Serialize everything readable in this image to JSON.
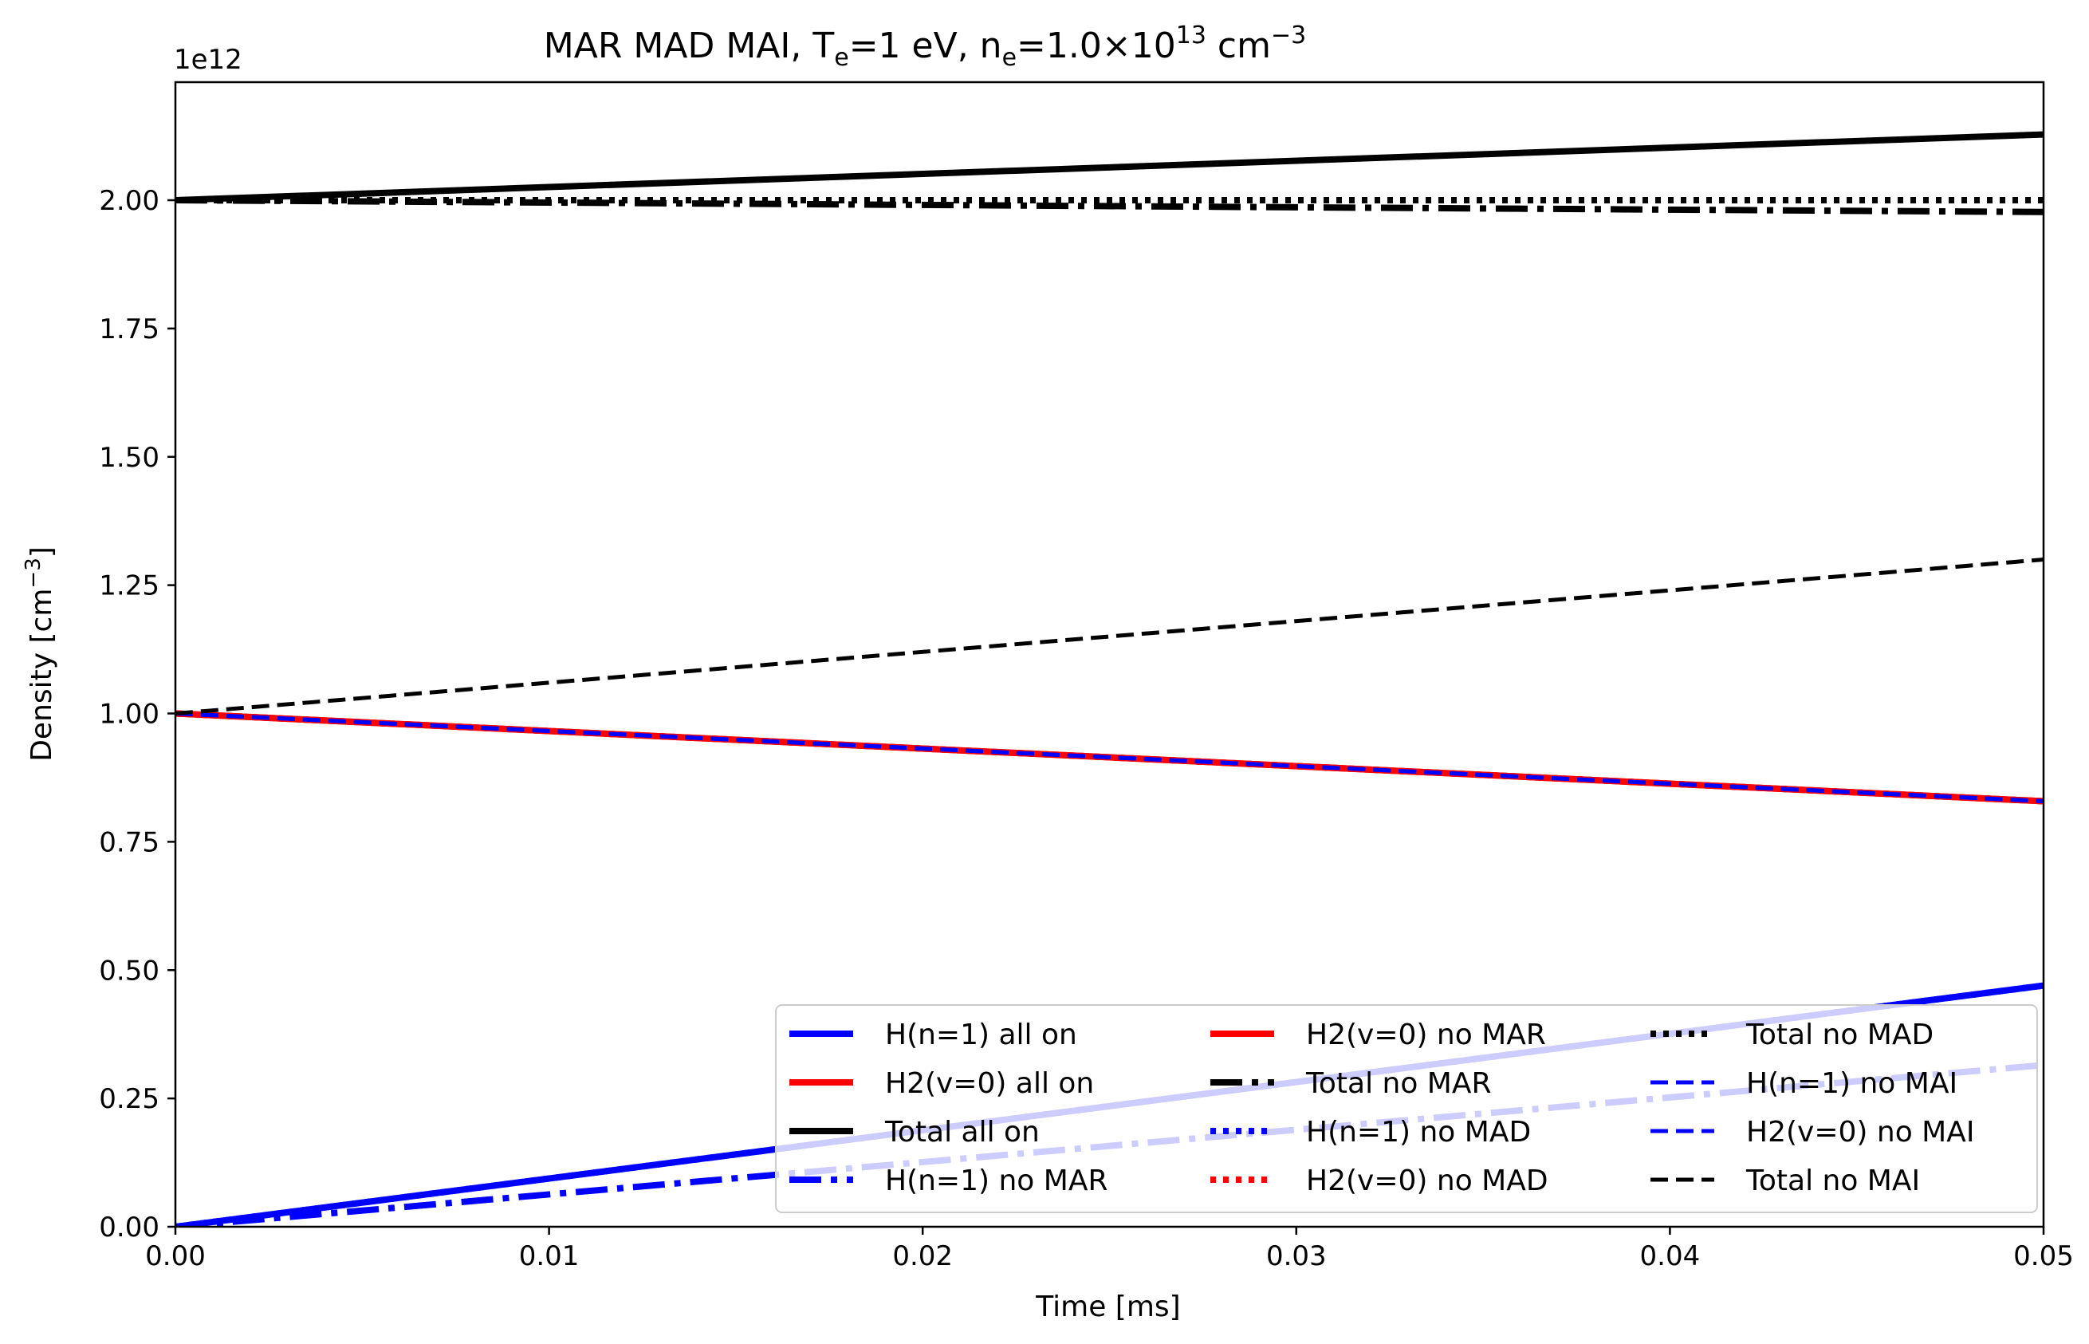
{
  "chart_data": {
    "type": "line",
    "title": {
      "main": "MAR MAD MAI,  T",
      "te_sub": "e",
      "te_value": "=1 eV, n",
      "ne_sub": "e",
      "ne_value": "=1.0×10",
      "ne_exp": "13",
      "unit": " cm",
      "unit_exp": "−3"
    },
    "xlabel": "Time [ms]",
    "ylabel": {
      "text": "Density [cm",
      "exp": "−3",
      "close": "]"
    },
    "y_offset_label": "1e12",
    "xlim": [
      0,
      0.05
    ],
    "ylim": [
      0,
      2.23
    ],
    "x_ticks": [
      {
        "value": 0.0,
        "label": "0.00"
      },
      {
        "value": 0.01,
        "label": "0.01"
      },
      {
        "value": 0.02,
        "label": "0.02"
      },
      {
        "value": 0.03,
        "label": "0.03"
      },
      {
        "value": 0.04,
        "label": "0.04"
      },
      {
        "value": 0.05,
        "label": "0.05"
      }
    ],
    "y_ticks": [
      {
        "value": 0.0,
        "label": "0.00"
      },
      {
        "value": 0.25,
        "label": "0.25"
      },
      {
        "value": 0.5,
        "label": "0.50"
      },
      {
        "value": 0.75,
        "label": "0.75"
      },
      {
        "value": 1.0,
        "label": "1.00"
      },
      {
        "value": 1.25,
        "label": "1.25"
      },
      {
        "value": 1.5,
        "label": "1.50"
      },
      {
        "value": 1.75,
        "label": "1.75"
      },
      {
        "value": 2.0,
        "label": "2.00"
      }
    ],
    "grid": false,
    "legend_position": "lower-right",
    "legend_columns": 3,
    "series": [
      {
        "name": "H(n=1) all on",
        "color": "#0000ff",
        "style": "solid",
        "width": 8,
        "opacity": 1,
        "x": [
          0,
          0.05
        ],
        "y": [
          0.0,
          0.47
        ]
      },
      {
        "name": "H2(v=0) all on",
        "color": "#ff0000",
        "style": "solid",
        "width": 8,
        "opacity": 1,
        "x": [
          0,
          0.05
        ],
        "y": [
          1.0,
          0.829
        ]
      },
      {
        "name": "Total all on",
        "color": "#000000",
        "style": "solid",
        "width": 8,
        "opacity": 1,
        "x": [
          0,
          0.05
        ],
        "y": [
          2.0,
          2.128
        ]
      },
      {
        "name": "H(n=1) no MAR",
        "color": "#0000ff",
        "style": "dashdot",
        "width": 8,
        "opacity": 1,
        "x": [
          0,
          0.05
        ],
        "y": [
          0.0,
          0.315
        ]
      },
      {
        "name": "H2(v=0) no MAR",
        "color": "#ff0000",
        "style": "solid",
        "width": 8,
        "opacity": 1,
        "x": [
          0,
          0.05
        ],
        "y": [
          1.0,
          0.829
        ]
      },
      {
        "name": "Total no MAR",
        "color": "#000000",
        "style": "dashdot",
        "width": 8,
        "opacity": 1,
        "x": [
          0,
          0.05
        ],
        "y": [
          2.0,
          1.977
        ]
      },
      {
        "name": "H(n=1) no MAD",
        "color": "#0000ff",
        "style": "dotted",
        "width": 8,
        "opacity": 1,
        "x": [
          0,
          0.05
        ],
        "y": [
          0.0,
          0.47
        ]
      },
      {
        "name": "H2(v=0) no MAD",
        "color": "#ff0000",
        "style": "dotted",
        "width": 8,
        "opacity": 1,
        "x": [
          0,
          0.05
        ],
        "y": [
          1.0,
          0.829
        ]
      },
      {
        "name": "Total no MAD",
        "color": "#000000",
        "style": "dotted",
        "width": 8,
        "opacity": 1,
        "x": [
          0,
          0.05
        ],
        "y": [
          2.0,
          2.0
        ]
      },
      {
        "name": "H(n=1) no MAI",
        "color": "#0000ff",
        "style": "dashed",
        "width": 5,
        "opacity": 1,
        "x": [
          0,
          0.05
        ],
        "y": [
          1.0,
          0.829
        ]
      },
      {
        "name": "H2(v=0) no MAI",
        "color": "#0000ff",
        "style": "dashed",
        "width": 5,
        "opacity": 1,
        "x": [
          0,
          0.05
        ],
        "y": [
          1.0,
          0.829
        ]
      },
      {
        "name": "Total no MAI",
        "color": "#000000",
        "style": "dashed",
        "width": 5,
        "opacity": 1,
        "x": [
          0,
          0.05
        ],
        "y": [
          1.0,
          1.3
        ]
      }
    ]
  }
}
